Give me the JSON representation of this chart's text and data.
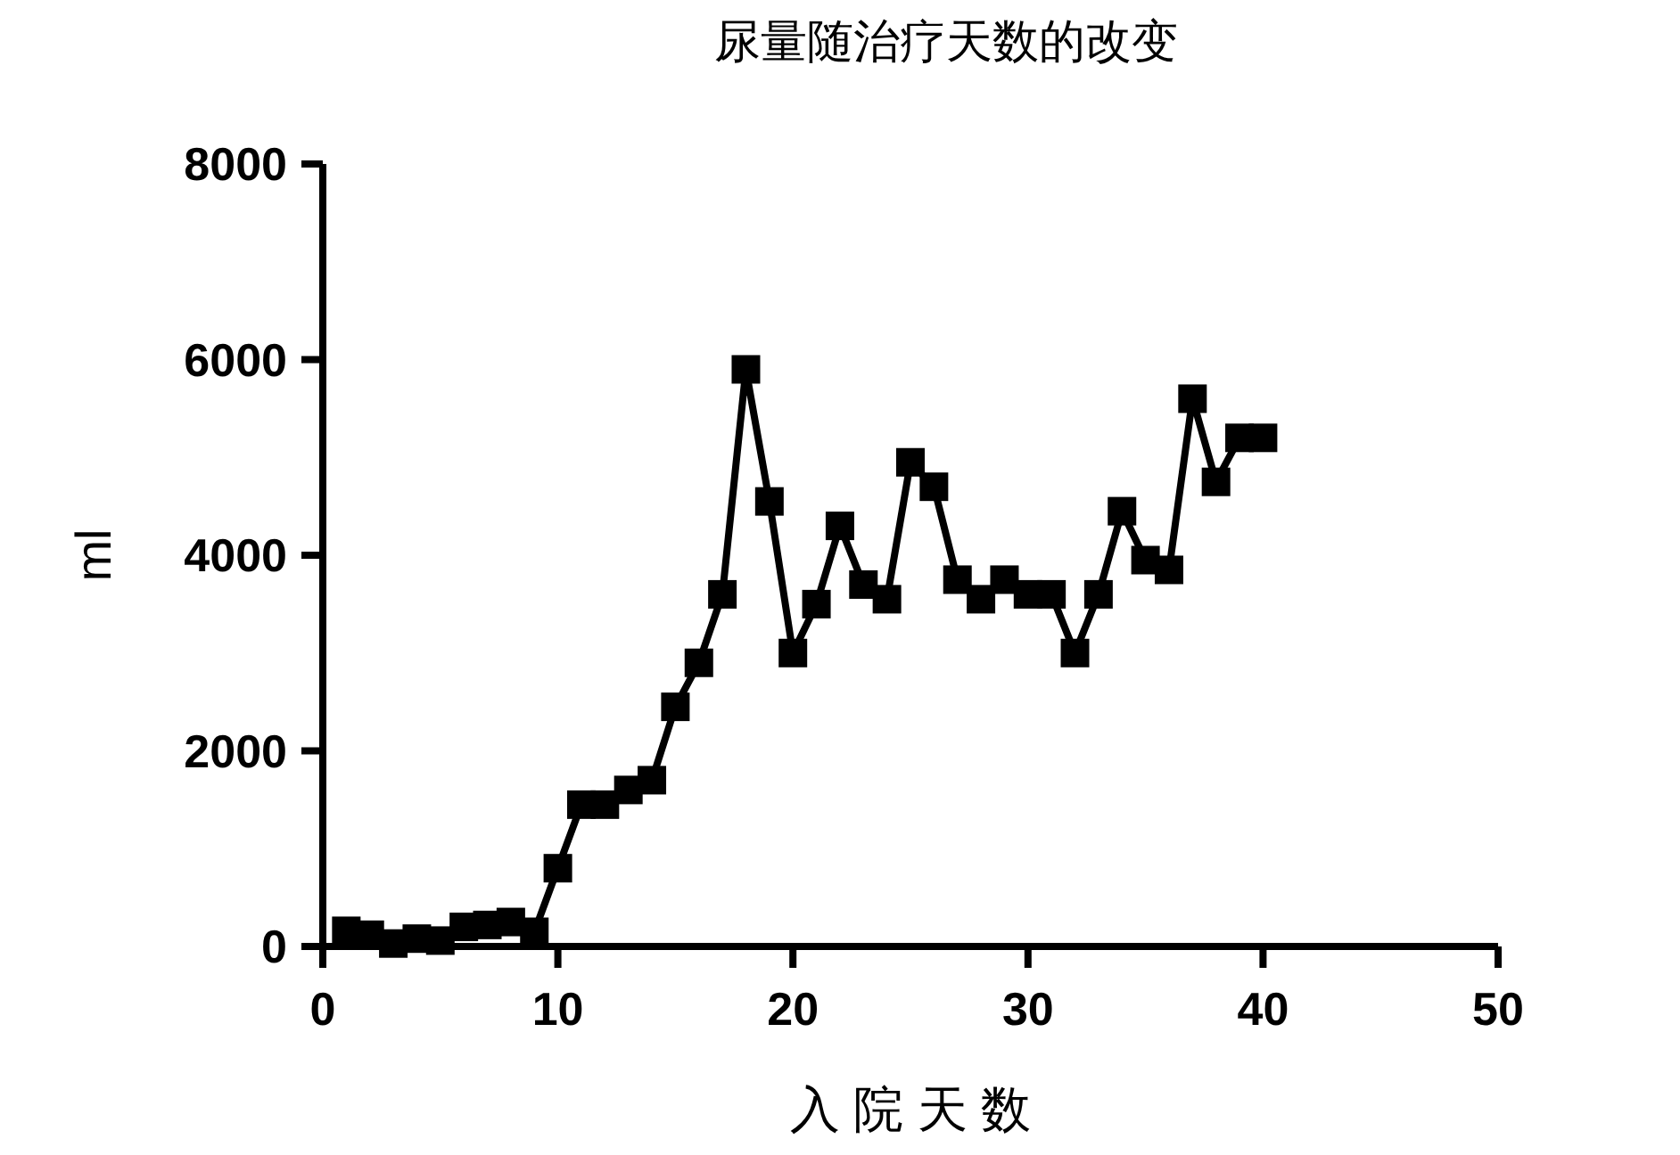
{
  "chart_data": {
    "type": "line",
    "title": "尿量随治疗天数的改变",
    "xlabel": "入 院 天 数",
    "ylabel": "ml",
    "x": [
      1,
      2,
      3,
      4,
      5,
      6,
      7,
      8,
      9,
      10,
      11,
      12,
      13,
      14,
      15,
      16,
      17,
      18,
      19,
      20,
      21,
      22,
      23,
      24,
      25,
      26,
      27,
      28,
      29,
      30,
      31,
      32,
      33,
      34,
      35,
      36,
      37,
      38,
      39,
      40
    ],
    "series": [
      {
        "color": "#000000",
        "values": [
          160,
          120,
          30,
          80,
          60,
          200,
          220,
          250,
          150,
          800,
          1450,
          1450,
          1600,
          1700,
          2450,
          2900,
          3600,
          5900,
          4550,
          3000,
          3500,
          4300,
          3700,
          3550,
          4950,
          4700,
          3750,
          3550,
          3750,
          3600,
          3600,
          3000,
          3600,
          4450,
          3950,
          3850,
          5600,
          4750,
          5200,
          5200
        ]
      }
    ],
    "xlim": [
      0,
      50
    ],
    "xticks": [
      0,
      10,
      20,
      30,
      40,
      50
    ],
    "ylim": [
      0,
      8000
    ],
    "yticks": [
      0,
      2000,
      4000,
      6000,
      8000
    ],
    "grid": false,
    "marker": "square",
    "line_style": "solid"
  }
}
